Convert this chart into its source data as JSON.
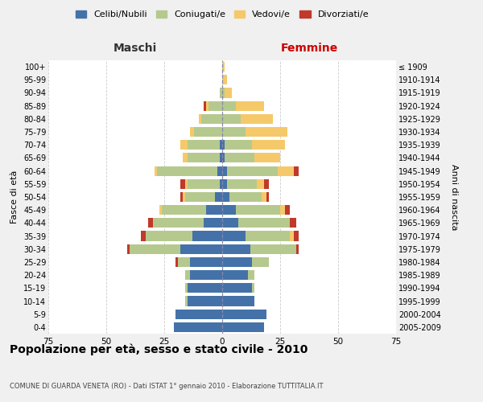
{
  "age_groups": [
    "0-4",
    "5-9",
    "10-14",
    "15-19",
    "20-24",
    "25-29",
    "30-34",
    "35-39",
    "40-44",
    "45-49",
    "50-54",
    "55-59",
    "60-64",
    "65-69",
    "70-74",
    "75-79",
    "80-84",
    "85-89",
    "90-94",
    "95-99",
    "100+"
  ],
  "birth_years": [
    "2005-2009",
    "2000-2004",
    "1995-1999",
    "1990-1994",
    "1985-1989",
    "1980-1984",
    "1975-1979",
    "1970-1974",
    "1965-1969",
    "1960-1964",
    "1955-1959",
    "1950-1954",
    "1945-1949",
    "1940-1944",
    "1935-1939",
    "1930-1934",
    "1925-1929",
    "1920-1924",
    "1915-1919",
    "1910-1914",
    "≤ 1909"
  ],
  "male": {
    "celibi": [
      21,
      20,
      15,
      15,
      14,
      14,
      18,
      13,
      8,
      7,
      3,
      1,
      2,
      1,
      1,
      0,
      0,
      0,
      0,
      0,
      0
    ],
    "coniugati": [
      0,
      0,
      1,
      1,
      2,
      5,
      22,
      20,
      22,
      19,
      13,
      14,
      26,
      14,
      14,
      12,
      9,
      6,
      1,
      0,
      0
    ],
    "vedovi": [
      0,
      0,
      0,
      0,
      0,
      0,
      0,
      0,
      0,
      1,
      1,
      1,
      1,
      2,
      3,
      2,
      1,
      1,
      0,
      0,
      0
    ],
    "divorziati": [
      0,
      0,
      0,
      0,
      0,
      1,
      1,
      2,
      2,
      0,
      1,
      2,
      0,
      0,
      0,
      0,
      0,
      1,
      0,
      0,
      0
    ]
  },
  "female": {
    "nubili": [
      18,
      19,
      14,
      13,
      11,
      13,
      12,
      10,
      7,
      6,
      3,
      2,
      2,
      1,
      1,
      0,
      0,
      0,
      0,
      0,
      0
    ],
    "coniugate": [
      0,
      0,
      0,
      1,
      3,
      7,
      20,
      19,
      22,
      19,
      14,
      13,
      22,
      13,
      12,
      10,
      8,
      6,
      1,
      0,
      0
    ],
    "vedove": [
      0,
      0,
      0,
      0,
      0,
      0,
      0,
      2,
      0,
      2,
      2,
      3,
      7,
      11,
      14,
      18,
      14,
      12,
      3,
      2,
      1
    ],
    "divorziate": [
      0,
      0,
      0,
      0,
      0,
      0,
      1,
      2,
      3,
      2,
      1,
      2,
      2,
      0,
      0,
      0,
      0,
      0,
      0,
      0,
      0
    ]
  },
  "colors": {
    "celibi": "#4472a8",
    "coniugati": "#b5c98e",
    "vedovi": "#f5c96a",
    "divorziati": "#c0392b"
  },
  "xlim": 75,
  "title": "Popolazione per età, sesso e stato civile - 2010",
  "subtitle": "COMUNE DI GUARDA VENETA (RO) - Dati ISTAT 1° gennaio 2010 - Elaborazione TUTTITALIA.IT",
  "ylabel_left": "Fasce di età",
  "ylabel_right": "Anni di nascita",
  "xlabel_maschi": "Maschi",
  "xlabel_femmine": "Femmine",
  "legend_labels": [
    "Celibi/Nubili",
    "Coniugati/e",
    "Vedovi/e",
    "Divorziati/e"
  ],
  "bg_color": "#f0f0f0",
  "plot_bg_color": "#ffffff",
  "maschi_color": "#333333",
  "femmine_color": "#cc0000"
}
